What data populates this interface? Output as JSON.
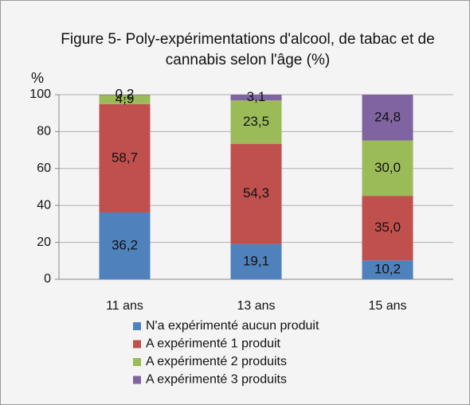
{
  "chart_data": {
    "type": "stacked_bar",
    "title": "Figure 5- Poly-expérimentations d'alcool, de tabac et de cannabis selon l'âge (%)",
    "y_label": "%",
    "categories": [
      "11 ans",
      "13 ans",
      "15 ans"
    ],
    "series": [
      {
        "name": "N'a expérimenté aucun produit",
        "color": "#4f81bd",
        "values": [
          36.2,
          19.1,
          10.2
        ],
        "value_labels": [
          "36,2",
          "19,1",
          "10,2"
        ]
      },
      {
        "name": "A expérimenté 1 produit",
        "color": "#c0504d",
        "values": [
          58.7,
          54.3,
          35.0
        ],
        "value_labels": [
          "58,7",
          "54,3",
          "35,0"
        ]
      },
      {
        "name": "A expérimenté 2 produits",
        "color": "#9bbb59",
        "values": [
          4.9,
          23.5,
          30.0
        ],
        "value_labels": [
          "4,9",
          "23,5",
          "30,0"
        ]
      },
      {
        "name": "A expérimenté 3 produits",
        "color": "#8064a2",
        "values": [
          0.2,
          3.1,
          24.8
        ],
        "value_labels": [
          "0,2",
          "3,1",
          "24,8"
        ]
      }
    ],
    "ylim": [
      0,
      100
    ],
    "yticks": [
      0,
      20,
      40,
      60,
      80,
      100
    ],
    "grid": true,
    "legend": "bottom"
  }
}
